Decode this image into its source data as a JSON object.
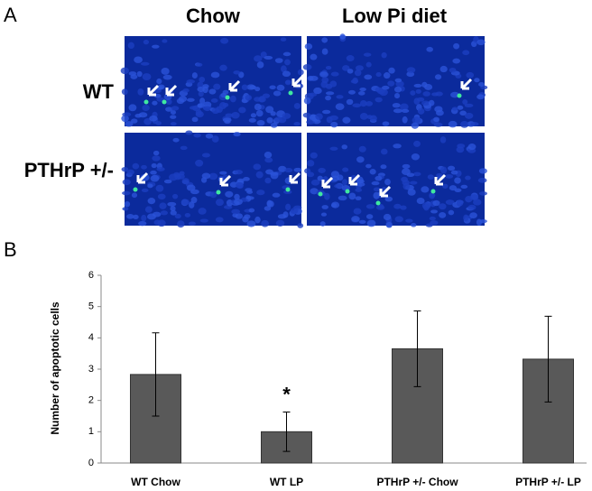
{
  "panel_a": {
    "label": "A",
    "columns": [
      "Chow",
      "Low Pi diet"
    ],
    "rows": [
      "WT",
      "PTHrP +/-"
    ]
  },
  "chart_data": {
    "type": "bar",
    "panel_label": "B",
    "ylabel": "Number of apoptotic cells",
    "categories": [
      "WT Chow",
      "WT LP",
      "PTHrP +/- Chow",
      "PTHrP +/- LP"
    ],
    "values": [
      2.83,
      1.0,
      3.65,
      3.32
    ],
    "errors": [
      1.33,
      0.63,
      1.21,
      1.37
    ],
    "color": "#595959",
    "annotation": "*",
    "ylim": [
      0,
      6
    ],
    "yticks": [
      0,
      1,
      2,
      3,
      4,
      5,
      6
    ],
    "grid": false
  }
}
